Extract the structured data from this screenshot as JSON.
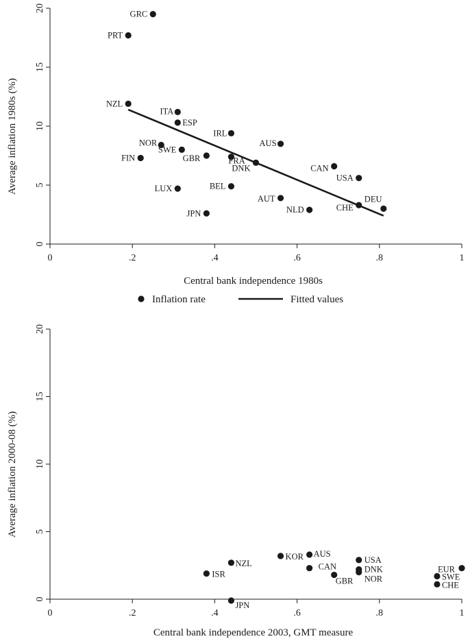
{
  "chart_data": [
    {
      "type": "scatter",
      "xlabel": "Central bank independence 1980s",
      "ylabel": "Average inflation 1980s (%)",
      "xlim": [
        0,
        1
      ],
      "ylim": [
        0,
        20
      ],
      "xticks": [
        "0",
        ".2",
        ".4",
        ".6",
        ".8",
        "1"
      ],
      "yticks": [
        "0",
        "5",
        "10",
        "15",
        "20"
      ],
      "legend": [
        "Inflation rate",
        "Fitted values"
      ],
      "legend_position": "bottom",
      "points": [
        {
          "label": "GRC",
          "x": 0.25,
          "y": 19.5
        },
        {
          "label": "PRT",
          "x": 0.19,
          "y": 17.7
        },
        {
          "label": "NZL",
          "x": 0.19,
          "y": 11.9
        },
        {
          "label": "ITA",
          "x": 0.31,
          "y": 11.2
        },
        {
          "label": "ESP",
          "x": 0.31,
          "y": 10.3
        },
        {
          "label": "IRL",
          "x": 0.44,
          "y": 9.4
        },
        {
          "label": "AUS",
          "x": 0.56,
          "y": 8.5
        },
        {
          "label": "NOR",
          "x": 0.27,
          "y": 8.4
        },
        {
          "label": "SWE",
          "x": 0.32,
          "y": 8.0
        },
        {
          "label": "GBR",
          "x": 0.38,
          "y": 7.5
        },
        {
          "label": "FRA",
          "x": 0.44,
          "y": 7.4
        },
        {
          "label": "FIN",
          "x": 0.22,
          "y": 7.3
        },
        {
          "label": "DNK",
          "x": 0.5,
          "y": 6.9
        },
        {
          "label": "CAN",
          "x": 0.69,
          "y": 6.6
        },
        {
          "label": "USA",
          "x": 0.75,
          "y": 5.6
        },
        {
          "label": "BEL",
          "x": 0.44,
          "y": 4.9
        },
        {
          "label": "LUX",
          "x": 0.31,
          "y": 4.7
        },
        {
          "label": "AUT",
          "x": 0.56,
          "y": 3.9
        },
        {
          "label": "CHE",
          "x": 0.75,
          "y": 3.3
        },
        {
          "label": "DEU",
          "x": 0.81,
          "y": 3.0
        },
        {
          "label": "NLD",
          "x": 0.63,
          "y": 2.9
        },
        {
          "label": "JPN",
          "x": 0.38,
          "y": 2.6
        }
      ],
      "fit_line": {
        "x": [
          0.19,
          0.81
        ],
        "y": [
          11.4,
          2.4
        ]
      }
    },
    {
      "type": "scatter",
      "xlabel": "Central bank independence 2003, GMT measure",
      "ylabel": "Average inflation 2000-08 (%)",
      "xlim": [
        0,
        1
      ],
      "ylim": [
        0,
        20
      ],
      "xticks": [
        "0",
        ".2",
        ".4",
        ".6",
        ".8",
        "1"
      ],
      "yticks": [
        "0",
        "5",
        "10",
        "15",
        "20"
      ],
      "points": [
        {
          "label": "KOR",
          "x": 0.56,
          "y": 3.2
        },
        {
          "label": "AUS",
          "x": 0.63,
          "y": 3.3
        },
        {
          "label": "USA",
          "x": 0.75,
          "y": 2.9
        },
        {
          "label": "NZL",
          "x": 0.44,
          "y": 2.7
        },
        {
          "label": "CAN",
          "x": 0.63,
          "y": 2.3
        },
        {
          "label": "EUR",
          "x": 1.0,
          "y": 2.3
        },
        {
          "label": "DNK",
          "x": 0.75,
          "y": 2.2
        },
        {
          "label": "NOR",
          "x": 0.75,
          "y": 2.0
        },
        {
          "label": "ISR",
          "x": 0.38,
          "y": 1.9
        },
        {
          "label": "GBR",
          "x": 0.69,
          "y": 1.8
        },
        {
          "label": "SWE",
          "x": 0.94,
          "y": 1.7
        },
        {
          "label": "CHE",
          "x": 0.94,
          "y": 1.1
        },
        {
          "label": "JPN",
          "x": 0.44,
          "y": -0.1
        }
      ]
    }
  ]
}
